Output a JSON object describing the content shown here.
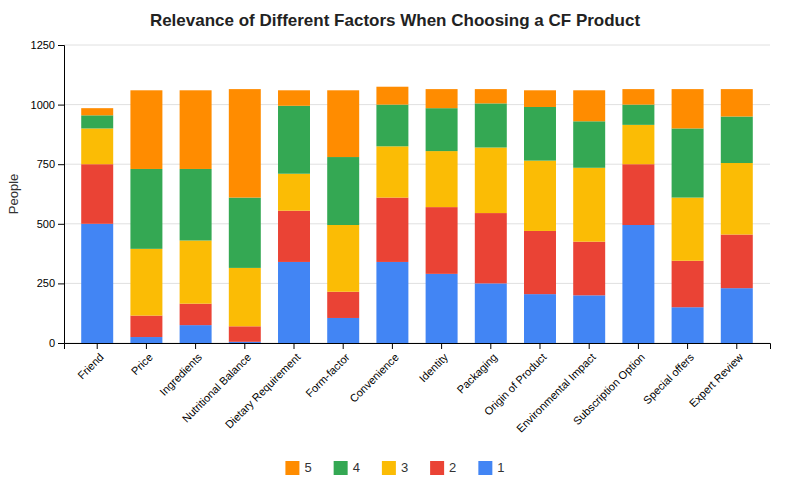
{
  "chart_data": {
    "type": "bar",
    "stacked": true,
    "title": "Relevance of Different Factors When Choosing a CF Product",
    "ylabel": "People",
    "categories": [
      "Friend",
      "Price",
      "Ingredients",
      "Nutritional Balance",
      "Dietary Requirement",
      "Form-factor",
      "Convenience",
      "Identity",
      "Packaging",
      "Origin of Product",
      "Environmental Impact",
      "Subscription Option",
      "Special offers",
      "Expert Review"
    ],
    "series": [
      {
        "name": "1",
        "color": "#4285F4",
        "values": [
          500,
          25,
          75,
          5,
          340,
          105,
          340,
          290,
          250,
          205,
          200,
          495,
          150,
          230
        ]
      },
      {
        "name": "2",
        "color": "#EA4335",
        "values": [
          250,
          90,
          90,
          65,
          215,
          110,
          270,
          280,
          295,
          265,
          225,
          255,
          195,
          225
        ]
      },
      {
        "name": "3",
        "color": "#FBBC05",
        "values": [
          150,
          280,
          265,
          245,
          155,
          280,
          215,
          235,
          275,
          295,
          310,
          165,
          265,
          300
        ]
      },
      {
        "name": "4",
        "color": "#34A853",
        "values": [
          55,
          335,
          300,
          295,
          285,
          285,
          175,
          180,
          185,
          225,
          195,
          85,
          290,
          195
        ]
      },
      {
        "name": "5",
        "color": "#FF8C00",
        "values": [
          30,
          330,
          330,
          455,
          65,
          280,
          75,
          80,
          60,
          70,
          130,
          65,
          165,
          115
        ]
      }
    ],
    "ylim": [
      0,
      1250
    ],
    "yticks": [
      0,
      250,
      500,
      750,
      1000,
      1250
    ],
    "grid": true,
    "legend": "bottom"
  }
}
